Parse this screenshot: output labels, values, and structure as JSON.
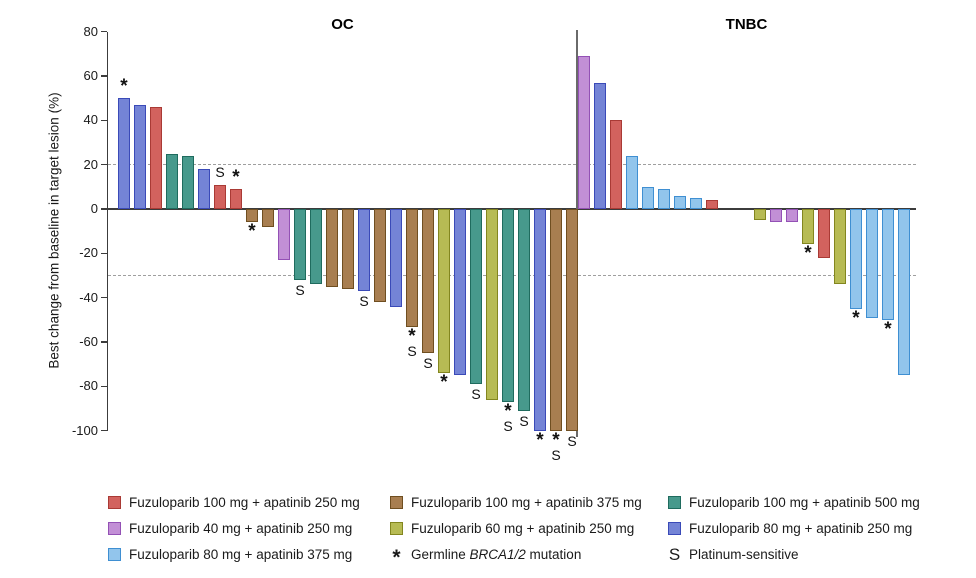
{
  "chart_data": {
    "type": "bar",
    "variant": "waterfall",
    "ylabel": "Best change from baseline in target lesion (%)",
    "ylim": [
      -100,
      80
    ],
    "yticks": [
      80,
      60,
      40,
      20,
      0,
      -20,
      -40,
      -60,
      -80,
      -100
    ],
    "reference_lines": [
      20,
      -30
    ],
    "grid": false,
    "marker_meanings": {
      "*": "Germline BRCA1/2 mutation",
      "S": "Platinum-sensitive"
    },
    "colors": {
      "f100a250": {
        "fill": "#D2625E",
        "stroke": "#A93A35"
      },
      "f40a250": {
        "fill": "#C28FD6",
        "stroke": "#9351B5"
      },
      "f80a375": {
        "fill": "#92C5EC",
        "stroke": "#3F8FD2"
      },
      "f100a375": {
        "fill": "#A87E50",
        "stroke": "#6F4E20"
      },
      "f60a250": {
        "fill": "#B7BB54",
        "stroke": "#83861F"
      },
      "f100a500": {
        "fill": "#47998C",
        "stroke": "#1F6B5E"
      },
      "f80a250": {
        "fill": "#7484D6",
        "stroke": "#3A4AB8"
      },
      "axis": "#3c3c3c",
      "dashed": "#9f9f9f"
    },
    "groups": [
      {
        "name": "OC",
        "bars": [
          {
            "v": 50,
            "d": "f80a250",
            "m": "*"
          },
          {
            "v": 47,
            "d": "f80a250",
            "m": ""
          },
          {
            "v": 46,
            "d": "f100a250",
            "m": ""
          },
          {
            "v": 25,
            "d": "f100a500",
            "m": ""
          },
          {
            "v": 24,
            "d": "f100a500",
            "m": ""
          },
          {
            "v": 18,
            "d": "f80a250",
            "m": ""
          },
          {
            "v": 11,
            "d": "f100a250",
            "m": "S"
          },
          {
            "v": 9,
            "d": "f100a250",
            "m": "*"
          },
          {
            "v": -6,
            "d": "f100a375",
            "m": "*"
          },
          {
            "v": -8,
            "d": "f100a375",
            "m": ""
          },
          {
            "v": -23,
            "d": "f40a250",
            "m": ""
          },
          {
            "v": -32,
            "d": "f100a500",
            "m": "S"
          },
          {
            "v": -34,
            "d": "f100a500",
            "m": ""
          },
          {
            "v": -35,
            "d": "f100a375",
            "m": ""
          },
          {
            "v": -36,
            "d": "f100a375",
            "m": ""
          },
          {
            "v": -37,
            "d": "f80a250",
            "m": "S"
          },
          {
            "v": -42,
            "d": "f100a375",
            "m": ""
          },
          {
            "v": -44,
            "d": "f80a250",
            "m": ""
          },
          {
            "v": -53,
            "d": "f100a375",
            "m": "*S"
          },
          {
            "v": -65,
            "d": "f100a375",
            "m": "S"
          },
          {
            "v": -74,
            "d": "f60a250",
            "m": "*"
          },
          {
            "v": -75,
            "d": "f80a250",
            "m": ""
          },
          {
            "v": -79,
            "d": "f100a500",
            "m": "S"
          },
          {
            "v": -86,
            "d": "f60a250",
            "m": ""
          },
          {
            "v": -87,
            "d": "f100a500",
            "m": "*S"
          },
          {
            "v": -91,
            "d": "f100a500",
            "m": "S"
          },
          {
            "v": -100,
            "d": "f80a250",
            "m": "*"
          },
          {
            "v": -100,
            "d": "f100a375",
            "m": "*S"
          },
          {
            "v": -100,
            "d": "f100a375",
            "m": "S"
          }
        ],
        "gaps": []
      },
      {
        "name": "TNBC",
        "bars": [
          {
            "v": 69,
            "d": "f40a250",
            "m": ""
          },
          {
            "v": 57,
            "d": "f80a250",
            "m": ""
          },
          {
            "v": 40,
            "d": "f100a250",
            "m": ""
          },
          {
            "v": 24,
            "d": "f80a375",
            "m": ""
          },
          {
            "v": 10,
            "d": "f80a375",
            "m": ""
          },
          {
            "v": 9,
            "d": "f80a375",
            "m": ""
          },
          {
            "v": 6,
            "d": "f80a375",
            "m": ""
          },
          {
            "v": 5,
            "d": "f80a375",
            "m": ""
          },
          {
            "v": 4,
            "d": "f100a250",
            "m": ""
          },
          {
            "v": -5,
            "d": "f60a250",
            "m": ""
          },
          {
            "v": -6,
            "d": "f40a250",
            "m": ""
          },
          {
            "v": -6,
            "d": "f40a250",
            "m": ""
          },
          {
            "v": -16,
            "d": "f60a250",
            "m": "*"
          },
          {
            "v": -22,
            "d": "f100a250",
            "m": ""
          },
          {
            "v": -34,
            "d": "f60a250",
            "m": ""
          },
          {
            "v": -45,
            "d": "f80a375",
            "m": "*"
          },
          {
            "v": -49,
            "d": "f80a375",
            "m": ""
          },
          {
            "v": -50,
            "d": "f80a375",
            "m": "*"
          },
          {
            "v": -75,
            "d": "f80a375",
            "m": ""
          }
        ],
        "gaps": [
          {
            "after_index": 8,
            "slots": 2
          }
        ]
      }
    ],
    "legend": {
      "columns": [
        [
          {
            "type": "swatch",
            "dose": "f100a250",
            "label": "Fuzuloparib 100 mg + apatinib 250 mg"
          },
          {
            "type": "swatch",
            "dose": "f40a250",
            "label": "Fuzuloparib 40 mg + apatinib 250 mg"
          },
          {
            "type": "swatch",
            "dose": "f80a375",
            "label": "Fuzuloparib 80 mg + apatinib 375 mg"
          }
        ],
        [
          {
            "type": "swatch",
            "dose": "f100a375",
            "label": "Fuzuloparib 100 mg + apatinib 375 mg"
          },
          {
            "type": "swatch",
            "dose": "f60a250",
            "label": "Fuzuloparib 60 mg + apatinib 250 mg"
          },
          {
            "type": "symbol",
            "symbol": "*",
            "label_prefix": "Germline ",
            "label_italic": "BRCA1/2",
            "label_suffix": " mutation"
          }
        ],
        [
          {
            "type": "swatch",
            "dose": "f100a500",
            "label": "Fuzuloparib 100 mg + apatinib 500 mg"
          },
          {
            "type": "swatch",
            "dose": "f80a250",
            "label": "Fuzuloparib 80 mg + apatinib 250 mg"
          },
          {
            "type": "symbol",
            "symbol": "S",
            "label": "Platinum-sensitive"
          }
        ]
      ]
    }
  }
}
